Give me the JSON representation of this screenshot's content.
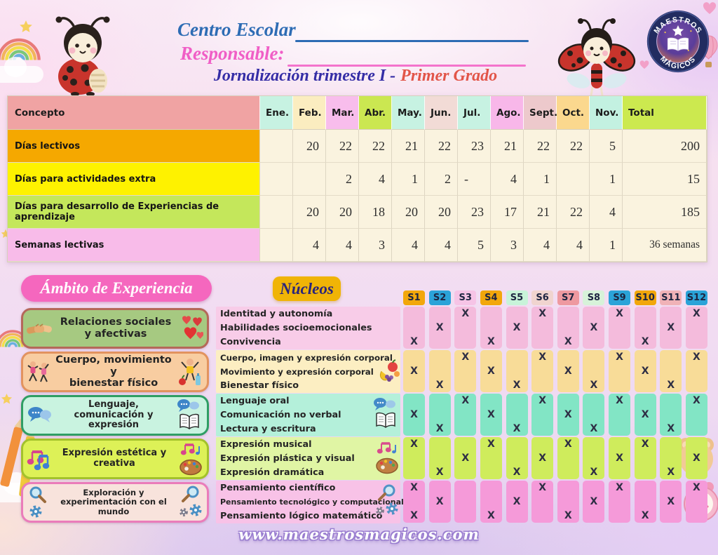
{
  "header": {
    "school_label": "Centro Escolar",
    "responsible_label": "Responsable:",
    "title_prefix": "Jornalización trimestre I -",
    "title_grade": "Primer Grado",
    "logo_top": "MAESTROS",
    "logo_bottom": "MÁGICOS"
  },
  "calendar": {
    "concept_header": "Concepto",
    "concept_color": "#f0a3a3",
    "months": [
      "Ene.",
      "Feb.",
      "Mar.",
      "Abr.",
      "May.",
      "Jun.",
      "Jul.",
      "Ago.",
      "Sept.",
      "Oct.",
      "Nov."
    ],
    "month_colors": [
      "#c7f2e2",
      "#fbedc0",
      "#f8bdec",
      "#cbe751",
      "#c7f2e2",
      "#f2dbd6",
      "#c7f2e2",
      "#f8b7e9",
      "#edc9cc",
      "#fbd88e",
      "#c3f1e1"
    ],
    "total_header": "Total",
    "total_color": "#cce94f",
    "rows": [
      {
        "label": "Días lectivos",
        "label_bg": "#f5a800",
        "values": [
          "",
          "20",
          "22",
          "22",
          "21",
          "22",
          "23",
          "21",
          "22",
          "22",
          "5"
        ],
        "total": "200"
      },
      {
        "label": "Días para actividades extra",
        "label_bg": "#fef200",
        "values": [
          "",
          "",
          "2",
          "4",
          "1",
          "2",
          "-",
          "4",
          "1",
          "",
          "1"
        ],
        "total": "15"
      },
      {
        "label": "Días para desarrollo de Experiencias de aprendizaje",
        "label_bg": "#c4e75b",
        "values": [
          "",
          "20",
          "20",
          "18",
          "20",
          "20",
          "23",
          "17",
          "21",
          "22",
          "4"
        ],
        "total": "185"
      },
      {
        "label": "Semanas lectivas",
        "label_bg": "#f8bbe9",
        "values": [
          "",
          "4",
          "4",
          "3",
          "4",
          "4",
          "5",
          "3",
          "4",
          "4",
          "1"
        ],
        "total": "36 semanas"
      }
    ]
  },
  "experience": {
    "ambito_title": "Ámbito de Experiencia",
    "nucleos_title": "Núcleos",
    "mark": "X",
    "weeks": [
      "S1",
      "S2",
      "S3",
      "S4",
      "S5",
      "S6",
      "S7",
      "S8",
      "S9",
      "S10",
      "S11",
      "S12"
    ],
    "week_colors": [
      "#f2a70b",
      "#2ba3d8",
      "#f6c4e6",
      "#f2a70b",
      "#c8f3d9",
      "#f0d4cf",
      "#ee99a0",
      "#d7f2d9",
      "#2ba3d8",
      "#f2a70b",
      "#f0b2b7",
      "#2ba3d8"
    ],
    "groups": [
      {
        "id": "relaciones",
        "ambito_lines": [
          "Relaciones sociales",
          "y afectivas"
        ],
        "box_bg": "#a6c981",
        "box_border": "#b5685a",
        "left_icon": "handshake-icon",
        "right_icon": "hearts-icon",
        "side_icon": null,
        "nucleos_bg": "#f8cce8",
        "column_bg": "#f4bbdc",
        "nucleos": [
          "Identitad y autonomía",
          "Habilidades socioemocionales",
          "Convivencia"
        ],
        "marks": [
          [
            3,
            6,
            9,
            12
          ],
          [
            2,
            5,
            8,
            11
          ],
          [
            1,
            4,
            7,
            10
          ]
        ]
      },
      {
        "id": "cuerpo",
        "ambito_lines": [
          "Cuerpo, movimiento y",
          "bienestar físico"
        ],
        "box_bg": "#f8cda1",
        "box_border": "#e2935f",
        "left_icon": "exercise-icon",
        "right_icon": "kid-fruits-icon",
        "side_icon": "fruits-icon",
        "nucleos_bg": "#fceec2",
        "column_bg": "#f8dc98",
        "nucleos": [
          "Cuerpo, imagen y expresión corporal",
          "Movimiento y expresión corporal",
          "Bienestar físico"
        ],
        "marks": [
          [
            3,
            6,
            9,
            12
          ],
          [
            1,
            4,
            7,
            10
          ],
          [
            2,
            5,
            8,
            11
          ]
        ]
      },
      {
        "id": "lenguaje",
        "ambito_lines": [
          "Lenguaje, comunicación y expresión"
        ],
        "box_bg": "#c9f3e0",
        "box_border": "#2f9e64",
        "left_icon": "speech-bubbles-icon",
        "right_icon": "bubbles-book-icon",
        "side_icon": "bubbles-book-icon",
        "nucleos_bg": "#b4f0da",
        "column_bg": "#82e5c5",
        "nucleos": [
          "Lenguaje oral",
          "Comunicación no verbal",
          "Lectura y escritura"
        ],
        "marks": [
          [
            3,
            6,
            9,
            12
          ],
          [
            1,
            4,
            7,
            10
          ],
          [
            2,
            5,
            8,
            11
          ]
        ]
      },
      {
        "id": "estetica",
        "ambito_lines": [
          "Expresión estética y creativa"
        ],
        "box_bg": "#ddf157",
        "box_border": "#a3c22b",
        "left_icon": "music-notes-icon",
        "right_icon": "notes-palette-icon",
        "side_icon": "notes-palette-icon",
        "nucleos_bg": "#e0f5a4",
        "column_bg": "#cfec5c",
        "nucleos": [
          "Expresión musical",
          "Expresión plástica y visual",
          "Expresión dramática"
        ],
        "marks": [
          [
            1,
            4,
            7,
            10
          ],
          [
            3,
            6,
            9,
            12
          ],
          [
            2,
            5,
            8,
            11
          ]
        ]
      },
      {
        "id": "exploracion",
        "ambito_lines": [
          "Exploración y experimentación con el mundo"
        ],
        "box_bg": "#f8e3dc",
        "box_border": "#ea7cba",
        "left_icon": "magnifier-gear-icon",
        "right_icon": "magnifier-gears-icon",
        "side_icon": "magnifier-gears-icon",
        "nucleos_bg": "#f8c2e7",
        "column_bg": "#f59ad9",
        "nucleos": [
          "Pensamiento científico",
          "Pensamiento tecnológico y computacional",
          "Pensamiento lógico matemático"
        ],
        "marks": [
          [
            1,
            6,
            9,
            12
          ],
          [
            2,
            5,
            8,
            11
          ],
          [
            1,
            4,
            7,
            10
          ]
        ]
      }
    ]
  },
  "footer": {
    "website": "www.maestrosmagicos.com"
  }
}
